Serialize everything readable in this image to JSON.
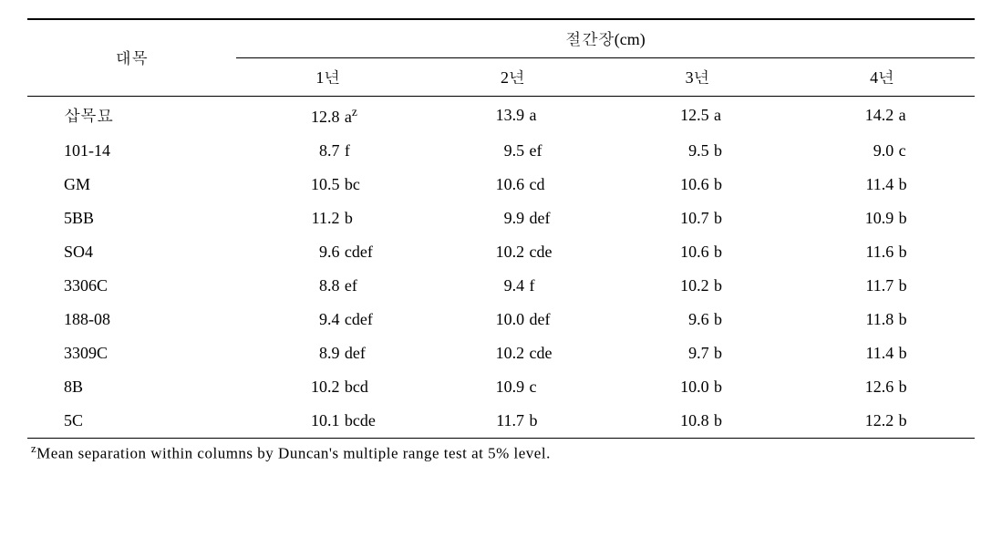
{
  "styling": {
    "font_family": "Times New Roman / Batang serif",
    "font_size_pt": 14,
    "footnote_font_size_pt": 13,
    "text_color": "#000000",
    "background_color": "#ffffff",
    "top_rule": "double 2.5px #000",
    "inner_rule": "solid 1px #000",
    "column_widths_pct": [
      22,
      19.5,
      19.5,
      19.5,
      19.5
    ]
  },
  "table": {
    "row_header_label": "대목",
    "spanning_header": "절간장(cm)",
    "year_labels": [
      "1년",
      "2년",
      "3년",
      "4년"
    ],
    "rows": [
      {
        "label": "삽목묘",
        "values": [
          "12.8",
          "13.9",
          "12.5",
          "14.2"
        ],
        "suffixes": [
          "aᶻ",
          "a",
          "a",
          "a"
        ]
      },
      {
        "label": "101-14",
        "values": [
          " 8.7",
          " 9.5",
          " 9.5",
          " 9.0"
        ],
        "suffixes": [
          "f",
          "ef",
          "b",
          "c"
        ]
      },
      {
        "label": "GM",
        "values": [
          "10.5",
          "10.6",
          "10.6",
          "11.4"
        ],
        "suffixes": [
          "bc",
          "cd",
          "b",
          "b"
        ]
      },
      {
        "label": "5BB",
        "values": [
          "11.2",
          " 9.9",
          "10.7",
          "10.9"
        ],
        "suffixes": [
          "b",
          "def",
          "b",
          "b"
        ]
      },
      {
        "label": "SO4",
        "values": [
          " 9.6",
          "10.2",
          "10.6",
          "11.6"
        ],
        "suffixes": [
          "cdef",
          "cde",
          "b",
          "b"
        ]
      },
      {
        "label": "3306C",
        "values": [
          " 8.8",
          " 9.4",
          "10.2",
          "11.7"
        ],
        "suffixes": [
          "ef",
          "f",
          "b",
          "b"
        ]
      },
      {
        "label": "188-08",
        "values": [
          " 9.4",
          "10.0",
          " 9.6",
          "11.8"
        ],
        "suffixes": [
          "cdef",
          "def",
          "b",
          "b"
        ]
      },
      {
        "label": "3309C",
        "values": [
          " 8.9",
          "10.2",
          " 9.7",
          "11.4"
        ],
        "suffixes": [
          "def",
          "cde",
          "b",
          "b"
        ]
      },
      {
        "label": "8B",
        "values": [
          "10.2",
          "10.9",
          "10.0",
          "12.6"
        ],
        "suffixes": [
          "bcd",
          "c",
          "b",
          "b"
        ]
      },
      {
        "label": "5C",
        "values": [
          "10.1",
          "11.7",
          "10.8",
          "12.2"
        ],
        "suffixes": [
          "bcde",
          "b",
          "b",
          "b"
        ]
      }
    ]
  },
  "footnote": {
    "marker": "z",
    "text": "Mean separation within columns by Duncan's multiple range test at 5% level."
  }
}
